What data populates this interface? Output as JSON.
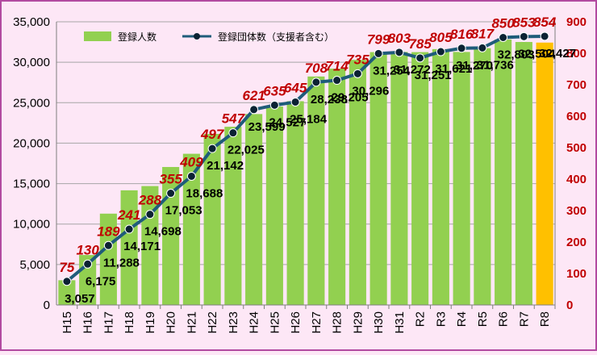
{
  "chart_data": {
    "type": "bar",
    "categories": [
      "H15",
      "H16",
      "H17",
      "H18",
      "H19",
      "H20",
      "H21",
      "H22",
      "H23",
      "H24",
      "H25",
      "H26",
      "H27",
      "H28",
      "H29",
      "H30",
      "H31",
      "R2",
      "R3",
      "R4",
      "R5",
      "R6",
      "R7",
      "R8"
    ],
    "series": [
      {
        "name": "登録人数",
        "type": "bar",
        "axis": "left",
        "color": "#92d050",
        "highlight_color": "#ffc000",
        "highlight_index": 23,
        "values": [
          3057,
          6175,
          11288,
          14171,
          14698,
          17053,
          18688,
          21142,
          22025,
          23599,
          24527,
          25184,
          28238,
          29205,
          30296,
          31254,
          31272,
          31251,
          31621,
          31270,
          31736,
          32803,
          32504,
          32427
        ],
        "value_labels": [
          "3,057",
          "6,175",
          "11,288",
          "14,171",
          "14,698",
          "17,053",
          "18,688",
          "21,142",
          "22,025",
          "23,599",
          "24,527",
          "25,184",
          "28,238",
          "29,205",
          "30,296",
          "31,254",
          "31,272",
          "31,251",
          "31,621",
          "31,270",
          "31,736",
          "32,803",
          "32,504",
          "32,427"
        ]
      },
      {
        "name": "登録団体数（支援者含む）",
        "type": "line",
        "axis": "right",
        "color": "#1f5c7a",
        "marker_color": "#0b2233",
        "label_color": "#c00000",
        "values": [
          75,
          130,
          189,
          241,
          288,
          355,
          409,
          497,
          547,
          621,
          635,
          645,
          708,
          714,
          735,
          799,
          803,
          785,
          805,
          816,
          817,
          850,
          853,
          854
        ]
      }
    ],
    "y_left": {
      "min": 0,
      "max": 35000,
      "step": 5000,
      "tick_labels": [
        "0",
        "5,000",
        "10,000",
        "15,000",
        "20,000",
        "25,000",
        "30,000",
        "35,000"
      ]
    },
    "y_right": {
      "min": 0,
      "max": 900,
      "step": 100,
      "tick_labels": [
        "0",
        "100",
        "200",
        "300",
        "400",
        "500",
        "600",
        "700",
        "800",
        "900"
      ]
    },
    "grid": true,
    "legend_position": "top-left"
  }
}
